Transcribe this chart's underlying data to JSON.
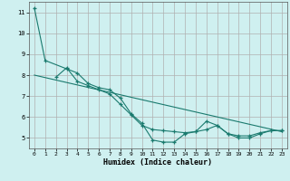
{
  "xlabel": "Humidex (Indice chaleur)",
  "bg_color": "#cff0f0",
  "grid_color": "#b0b0b0",
  "line_color": "#1a7a6e",
  "marker_color": "#1a7a6e",
  "xlim": [
    -0.5,
    23.5
  ],
  "ylim": [
    4.5,
    11.5
  ],
  "yticks": [
    5,
    6,
    7,
    8,
    9,
    10,
    11
  ],
  "xticks": [
    0,
    1,
    2,
    3,
    4,
    5,
    6,
    7,
    8,
    9,
    10,
    11,
    12,
    13,
    14,
    15,
    16,
    17,
    18,
    19,
    20,
    21,
    22,
    23
  ],
  "series": [
    {
      "x": [
        0,
        1,
        3,
        4,
        5,
        6,
        7,
        8,
        9,
        10,
        11,
        12,
        13,
        14,
        15,
        16,
        17,
        18,
        19,
        20,
        21,
        22,
        23
      ],
      "y": [
        11.2,
        8.7,
        8.3,
        8.1,
        7.6,
        7.4,
        7.3,
        6.9,
        6.15,
        5.7,
        4.9,
        4.8,
        4.8,
        5.2,
        5.3,
        5.8,
        5.6,
        5.2,
        5.1,
        5.1,
        5.25,
        5.35,
        5.35
      ],
      "has_markers": true
    },
    {
      "x": [
        2,
        3,
        4,
        5,
        6,
        7,
        8,
        9,
        10,
        11,
        12,
        13,
        14,
        15,
        16,
        17,
        18,
        19,
        20,
        21,
        22,
        23
      ],
      "y": [
        7.9,
        8.35,
        7.7,
        7.5,
        7.3,
        7.1,
        6.6,
        6.1,
        5.6,
        5.4,
        5.35,
        5.3,
        5.25,
        5.3,
        5.4,
        5.6,
        5.2,
        5.0,
        5.0,
        5.2,
        5.35,
        5.35
      ],
      "has_markers": true
    },
    {
      "x": [
        0,
        23
      ],
      "y": [
        8.0,
        5.3
      ],
      "has_markers": false
    }
  ]
}
